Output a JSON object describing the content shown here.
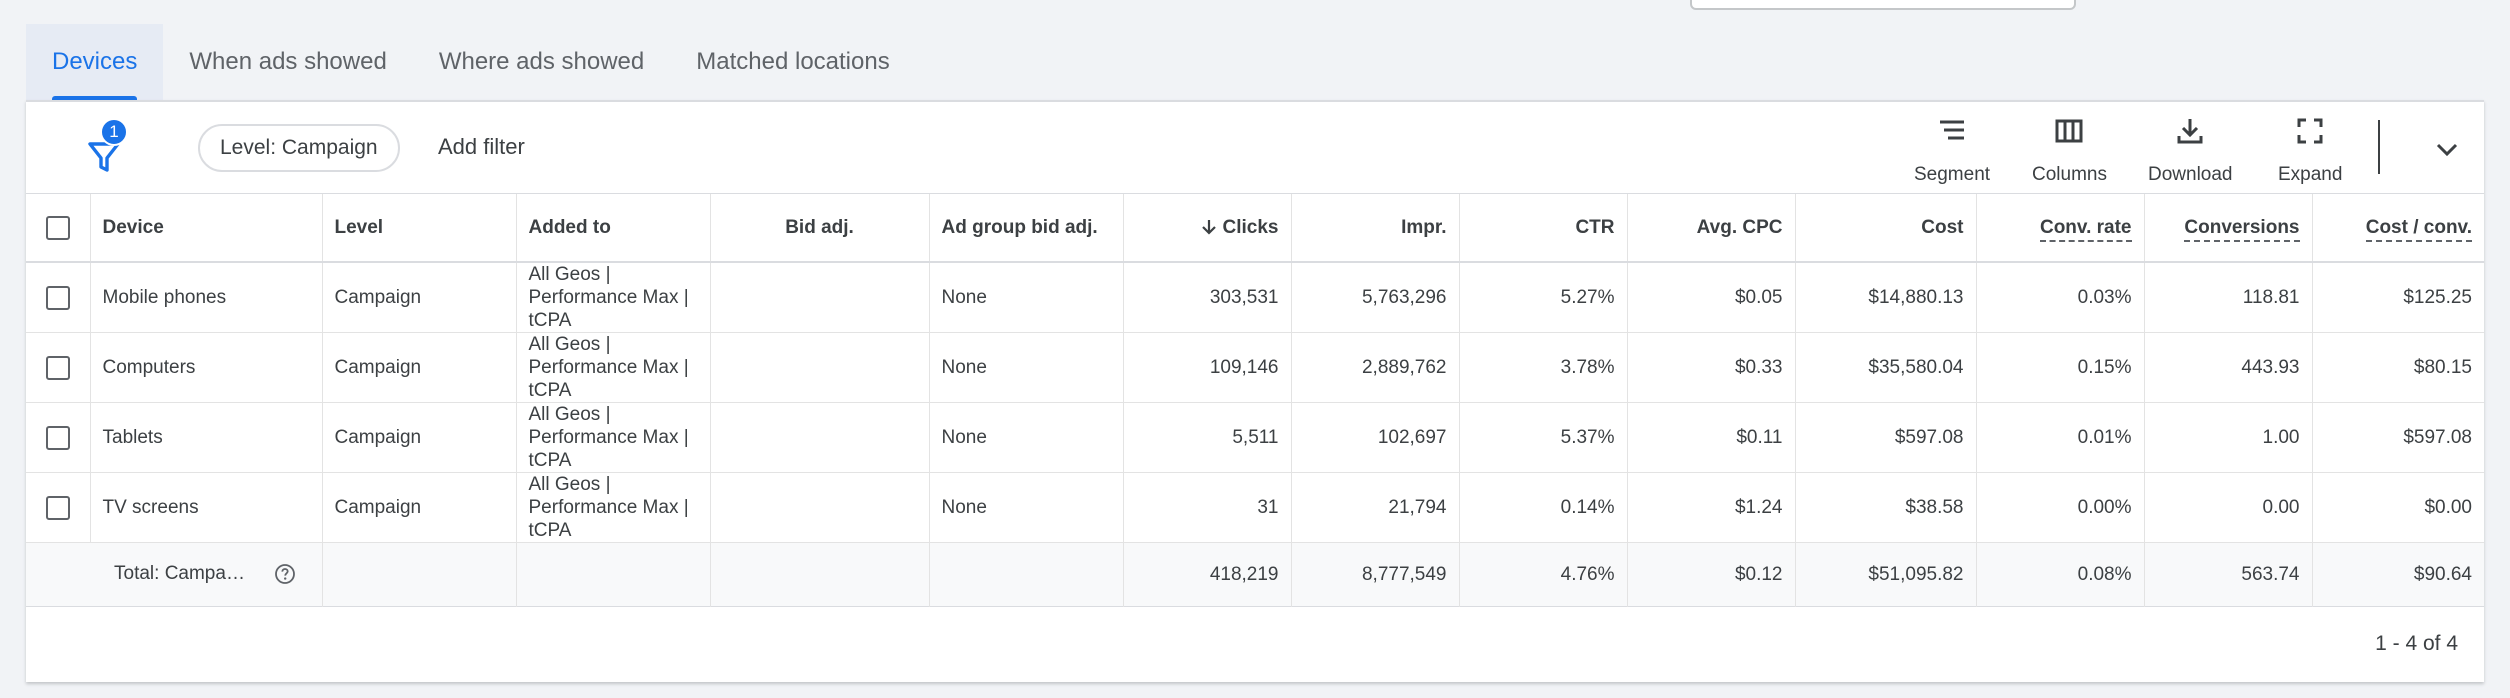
{
  "tabs": [
    "Devices",
    "When ads showed",
    "Where ads showed",
    "Matched locations"
  ],
  "active_tab": "Devices",
  "filter": {
    "badge_count": "1",
    "chip_label": "Level: Campaign",
    "add_filter_label": "Add filter"
  },
  "toolbar": {
    "segment_label": "Segment",
    "columns_label": "Columns",
    "download_label": "Download",
    "expand_label": "Expand"
  },
  "table": {
    "columns": [
      "Device",
      "Level",
      "Added to",
      "Bid adj.",
      "Ad group bid adj.",
      "Clicks",
      "Impr.",
      "CTR",
      "Avg. CPC",
      "Cost",
      "Conv. rate",
      "Conversions",
      "Cost / conv."
    ],
    "rows": [
      {
        "device": "Mobile phones",
        "level": "Campaign",
        "added_to": "All Geos | Performance Max | tCPA",
        "bid_adj": "",
        "ad_group_bid_adj": "None",
        "clicks": "303,531",
        "impr": "5,763,296",
        "ctr": "5.27%",
        "avg_cpc": "$0.05",
        "cost": "$14,880.13",
        "conv_rate": "0.03%",
        "conversions": "118.81",
        "cost_conv": "$125.25"
      },
      {
        "device": "Computers",
        "level": "Campaign",
        "added_to": "All Geos | Performance Max | tCPA",
        "bid_adj": "",
        "ad_group_bid_adj": "None",
        "clicks": "109,146",
        "impr": "2,889,762",
        "ctr": "3.78%",
        "avg_cpc": "$0.33",
        "cost": "$35,580.04",
        "conv_rate": "0.15%",
        "conversions": "443.93",
        "cost_conv": "$80.15"
      },
      {
        "device": "Tablets",
        "level": "Campaign",
        "added_to": "All Geos | Performance Max | tCPA",
        "bid_adj": "",
        "ad_group_bid_adj": "None",
        "clicks": "5,511",
        "impr": "102,697",
        "ctr": "5.37%",
        "avg_cpc": "$0.11",
        "cost": "$597.08",
        "conv_rate": "0.01%",
        "conversions": "1.00",
        "cost_conv": "$597.08"
      },
      {
        "device": "TV screens",
        "level": "Campaign",
        "added_to": "All Geos | Performance Max | tCPA",
        "bid_adj": "",
        "ad_group_bid_adj": "None",
        "clicks": "31",
        "impr": "21,794",
        "ctr": "0.14%",
        "avg_cpc": "$1.24",
        "cost": "$38.58",
        "conv_rate": "0.00%",
        "conversions": "0.00",
        "cost_conv": "$0.00"
      }
    ],
    "total": {
      "label": "Total: Campa…",
      "clicks": "418,219",
      "impr": "8,777,549",
      "ctr": "4.76%",
      "avg_cpc": "$0.12",
      "cost": "$51,095.82",
      "conv_rate": "0.08%",
      "conversions": "563.74",
      "cost_conv": "$90.64"
    }
  },
  "pagination": "1 - 4 of 4",
  "colors": {
    "accent": "#1a73e8",
    "text": "#3c4043",
    "muted": "#5f6368",
    "background": "#f1f3f6"
  }
}
